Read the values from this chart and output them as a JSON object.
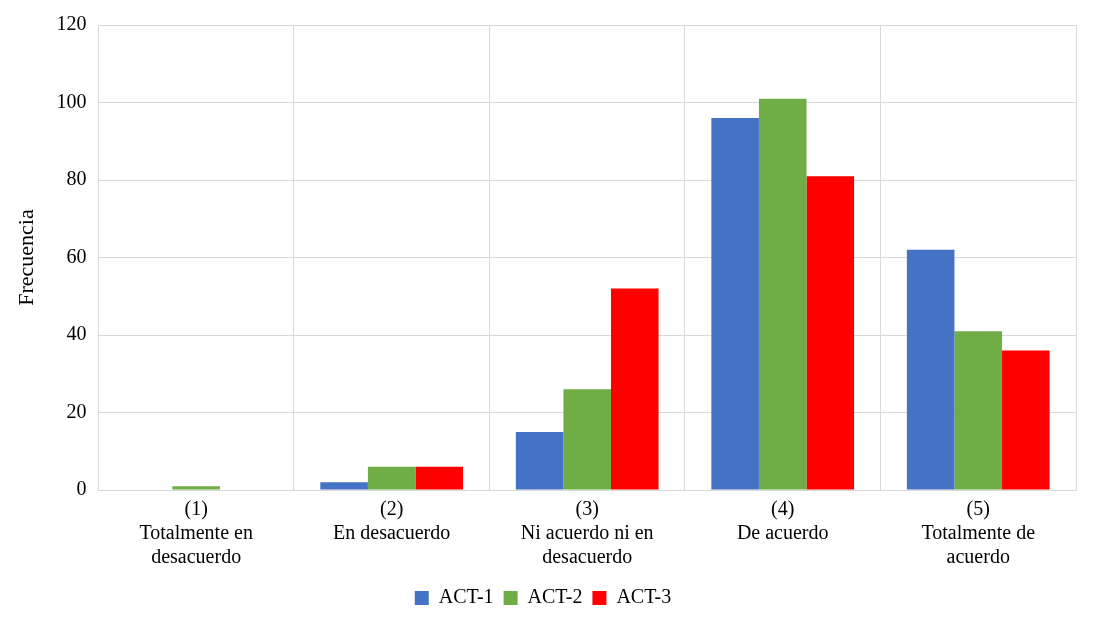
{
  "chart_data": {
    "type": "bar",
    "ylabel": "Frecuencia",
    "categories": [
      "(1) Totalmente en desacuerdo",
      "(2) En desacuerdo",
      "(3) Ni acuerdo ni en desacuerdo",
      "(4) De acuerdo",
      "(5) Totalmente de acuerdo"
    ],
    "series": [
      {
        "name": "ACT-1",
        "color": "#4472c4",
        "values": [
          0,
          2,
          15,
          96,
          62
        ]
      },
      {
        "name": "ACT-2",
        "color": "#70ad47",
        "values": [
          1,
          6,
          26,
          101,
          41
        ]
      },
      {
        "name": "ACT-3",
        "color": "#ff0000",
        "values": [
          0,
          6,
          52,
          81,
          36
        ]
      }
    ],
    "ylim": [
      0,
      120
    ],
    "yticks": [
      0,
      20,
      40,
      60,
      80,
      100,
      120
    ],
    "grid": true,
    "legend": "bottom"
  }
}
